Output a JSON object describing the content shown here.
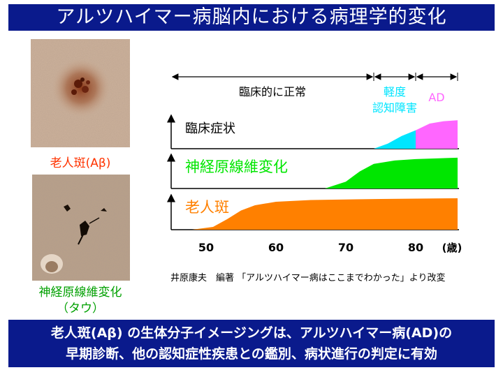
{
  "title": "アルツハイマー病脳内における病理学的変化",
  "photos": {
    "plaque_caption": "老人斑(Aβ)",
    "tangle_caption_line1": "神経原線維変化",
    "tangle_caption_line2": "（タウ）"
  },
  "colors": {
    "title_bg": "#0a1a8c",
    "normal_arrow": "#000000",
    "mci_color": "#00e5ff",
    "ad_color": "#ff66ff",
    "tangle_color": "#00e600",
    "plaque_color": "#ff8000",
    "plaque_caption_color": "#ff3300",
    "tangle_caption_color": "#00a000"
  },
  "chart_data": {
    "type": "area",
    "x_unit": "(歳)",
    "x_ticks": [
      50,
      60,
      70,
      80
    ],
    "xlim": [
      45,
      86
    ],
    "ylim": [
      0,
      1
    ],
    "stages": [
      {
        "label": "臨床的に正常",
        "x_range": [
          45,
          74
        ]
      },
      {
        "label_line1": "軽度",
        "label_line2": "認知障害",
        "x_range": [
          74,
          80
        ]
      },
      {
        "label": "AD",
        "x_range": [
          80,
          86
        ]
      }
    ],
    "series": [
      {
        "name": "臨床症状",
        "segments": [
          {
            "stage": "mci",
            "points": [
              [
                74,
                0
              ],
              [
                76,
                0.15
              ],
              [
                78,
                0.38
              ],
              [
                80,
                0.55
              ]
            ]
          },
          {
            "stage": "ad",
            "points": [
              [
                80,
                0.55
              ],
              [
                82,
                0.75
              ],
              [
                84,
                0.82
              ],
              [
                86,
                0.85
              ]
            ]
          }
        ]
      },
      {
        "name": "神経原線維変化",
        "points": [
          [
            67,
            0
          ],
          [
            70,
            0.2
          ],
          [
            72,
            0.5
          ],
          [
            74,
            0.72
          ],
          [
            77,
            0.82
          ],
          [
            80,
            0.86
          ],
          [
            86,
            0.9
          ]
        ]
      },
      {
        "name": "老人斑",
        "points": [
          [
            48,
            0
          ],
          [
            51,
            0.08
          ],
          [
            53,
            0.3
          ],
          [
            55,
            0.55
          ],
          [
            57,
            0.7
          ],
          [
            60,
            0.8
          ],
          [
            65,
            0.85
          ],
          [
            75,
            0.88
          ],
          [
            86,
            0.9
          ]
        ]
      }
    ]
  },
  "footer": {
    "line1": "老人斑(Aβ) の生体分子イメージングは、アルツハイマー病(AD)の",
    "line2": "早期診断、他の認知症性疾患との鑑別、病状進行の判定に有効"
  },
  "source_note": "井原康夫　編著 「アルツハイマー病はここまでわかった」より改変"
}
